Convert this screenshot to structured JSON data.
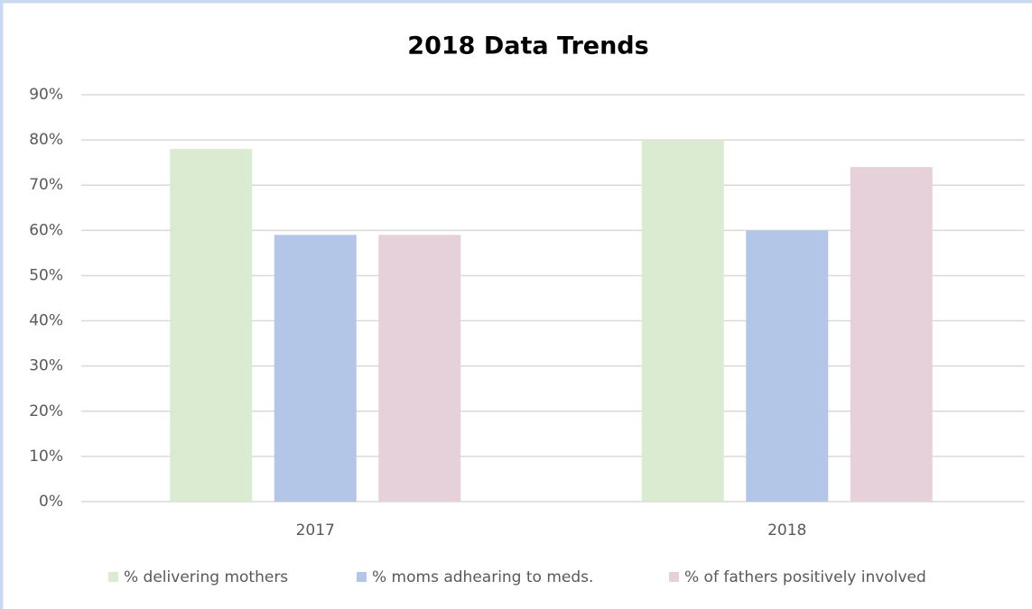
{
  "chart_data": {
    "type": "bar",
    "title": "2018 Data Trends",
    "categories": [
      "2017",
      "2018"
    ],
    "series": [
      {
        "name": "% delivering mothers",
        "color": "#dbebd1",
        "values": [
          78,
          80
        ]
      },
      {
        "name": "% moms adhearing to meds.",
        "color": "#b4c6e7",
        "values": [
          59,
          60
        ]
      },
      {
        "name": "% of fathers positively involved",
        "color": "#e6d0da",
        "values": [
          59,
          74
        ]
      }
    ],
    "ylim": [
      0,
      90
    ],
    "yticks": [
      {
        "value": 0,
        "label": "0%"
      },
      {
        "value": 10,
        "label": "10%"
      },
      {
        "value": 20,
        "label": "20%"
      },
      {
        "value": 30,
        "label": "30%"
      },
      {
        "value": 40,
        "label": "40%"
      },
      {
        "value": 50,
        "label": "50%"
      },
      {
        "value": 60,
        "label": "60%"
      },
      {
        "value": 70,
        "label": "70%"
      },
      {
        "value": 80,
        "label": "80%"
      },
      {
        "value": 90,
        "label": "90%"
      }
    ],
    "grid": true,
    "legend": "bottom"
  }
}
